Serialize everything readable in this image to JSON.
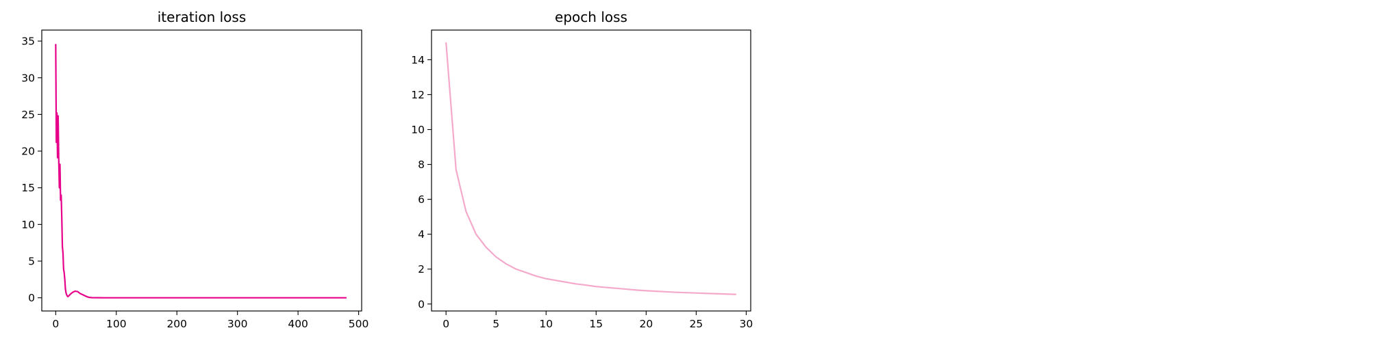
{
  "chart_data": [
    {
      "type": "line",
      "title": "iteration loss",
      "xlabel": "",
      "ylabel": "",
      "xlim": [
        -23,
        505
      ],
      "ylim": [
        -1.8,
        36.5
      ],
      "xticks": [
        0,
        100,
        200,
        300,
        400,
        500
      ],
      "yticks": [
        0,
        5,
        10,
        15,
        20,
        25,
        30,
        35
      ],
      "grid": false,
      "legend": "none",
      "color": "#e7008a",
      "series": [
        {
          "x": [
            0,
            1,
            2,
            3,
            4,
            5,
            6,
            7,
            8,
            9,
            10,
            11,
            12,
            13,
            14,
            15,
            16,
            17,
            18,
            20,
            22,
            25,
            28,
            32,
            36,
            40,
            45,
            50,
            55,
            60,
            80,
            120,
            200,
            300,
            400,
            480
          ],
          "y": [
            34.6,
            21.2,
            25.2,
            19.1,
            24.8,
            18.8,
            15.0,
            18.2,
            13.3,
            14.0,
            11.0,
            7.0,
            6.1,
            3.9,
            3.4,
            2.5,
            1.2,
            0.7,
            0.4,
            0.15,
            0.3,
            0.55,
            0.75,
            0.9,
            0.85,
            0.6,
            0.4,
            0.2,
            0.05,
            0.02,
            0.0,
            0.0,
            0.0,
            0.0,
            0.0,
            0.0
          ]
        }
      ]
    },
    {
      "type": "line",
      "title": "epoch loss",
      "xlabel": "",
      "ylabel": "",
      "xlim": [
        -1.45,
        30.45
      ],
      "ylim": [
        -0.4,
        15.7
      ],
      "xticks": [
        0,
        5,
        10,
        15,
        20,
        25,
        30
      ],
      "yticks": [
        0,
        2,
        4,
        6,
        8,
        10,
        12,
        14
      ],
      "grid": false,
      "legend": "none",
      "color": "#f4a9cb",
      "series": [
        {
          "x": [
            0,
            1,
            2,
            3,
            4,
            5,
            6,
            7,
            8,
            9,
            10,
            11,
            12,
            13,
            14,
            15,
            16,
            17,
            18,
            19,
            20,
            21,
            22,
            23,
            24,
            25,
            26,
            27,
            28,
            29
          ],
          "y": [
            15.0,
            7.7,
            5.3,
            4.0,
            3.25,
            2.7,
            2.3,
            2.0,
            1.8,
            1.6,
            1.45,
            1.35,
            1.25,
            1.15,
            1.08,
            1.0,
            0.95,
            0.9,
            0.85,
            0.8,
            0.76,
            0.73,
            0.7,
            0.67,
            0.65,
            0.63,
            0.61,
            0.59,
            0.57,
            0.55
          ]
        }
      ]
    }
  ]
}
